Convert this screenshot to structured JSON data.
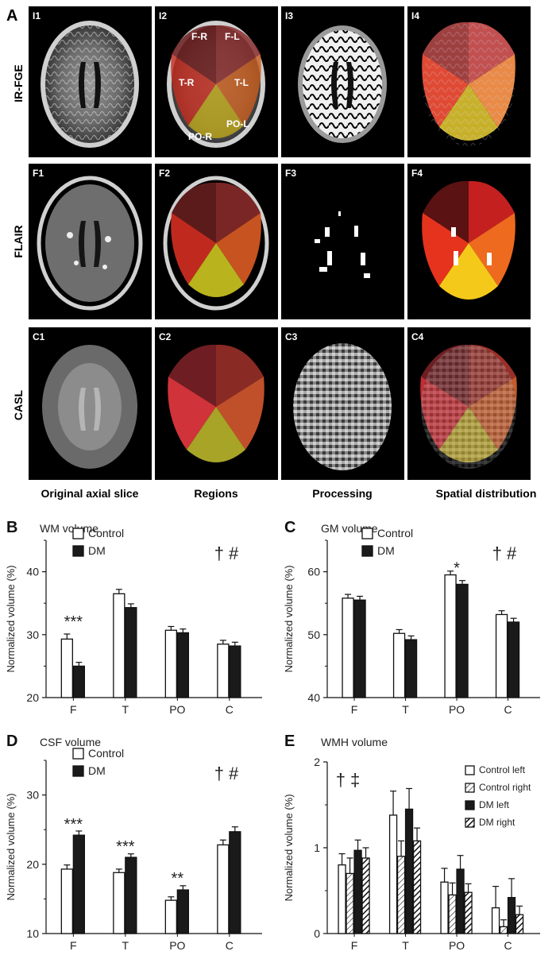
{
  "panel_a": {
    "letter": "A",
    "rows": [
      {
        "label": "IR-FGE",
        "tiles": [
          "I1",
          "I2",
          "I3",
          "I4"
        ]
      },
      {
        "label": "FLAIR",
        "tiles": [
          "F1",
          "F2",
          "F3",
          "F4"
        ]
      },
      {
        "label": "CASL",
        "tiles": [
          "C1",
          "C2",
          "C3",
          "C4"
        ]
      }
    ],
    "region_labels": [
      "F-R",
      "F-L",
      "T-R",
      "T-L",
      "PO-R",
      "PO-L"
    ],
    "column_titles": [
      "Original axial slice",
      "Regions",
      "Processing",
      "Spatial distribution"
    ]
  },
  "chart_data": [
    {
      "panel": "B",
      "type": "bar",
      "title": "WM volume",
      "ylabel": "Normalized volume (%)",
      "xlabel": "",
      "categories": [
        "F",
        "T",
        "PO",
        "C"
      ],
      "ylim": [
        20,
        45
      ],
      "yticks": [
        "20",
        "30",
        "40"
      ],
      "ytick_values": [
        20,
        30,
        40
      ],
      "series": [
        {
          "name": "Control",
          "values": [
            29.3,
            36.5,
            30.7,
            28.5
          ],
          "errors": [
            0.8,
            0.7,
            0.6,
            0.6
          ]
        },
        {
          "name": "DM",
          "values": [
            25.0,
            34.3,
            30.3,
            28.2
          ],
          "errors": [
            0.6,
            0.6,
            0.6,
            0.6
          ]
        }
      ],
      "annotations": [
        {
          "text": "***",
          "category": 0,
          "y": 31.0
        }
      ],
      "corner_note": "† #"
    },
    {
      "panel": "C",
      "type": "bar",
      "title": "GM volume",
      "ylabel": "Normalized volume (%)",
      "xlabel": "",
      "categories": [
        "F",
        "T",
        "PO",
        "C"
      ],
      "ylim": [
        40,
        65
      ],
      "yticks": [
        "40",
        "50",
        "60"
      ],
      "ytick_values": [
        40,
        50,
        60
      ],
      "series": [
        {
          "name": "Control",
          "values": [
            55.8,
            50.2,
            59.5,
            53.2
          ],
          "errors": [
            0.6,
            0.6,
            0.6,
            0.6
          ]
        },
        {
          "name": "DM",
          "values": [
            55.5,
            49.2,
            58.0,
            52.0
          ],
          "errors": [
            0.6,
            0.6,
            0.6,
            0.6
          ]
        }
      ],
      "annotations": [
        {
          "text": "*",
          "category": 2,
          "y": 59.5
        }
      ],
      "corner_note": "† #"
    },
    {
      "panel": "D",
      "type": "bar",
      "title": "CSF volume",
      "ylabel": "Normalized volume (%)",
      "xlabel": "",
      "categories": [
        "F",
        "T",
        "PO",
        "C"
      ],
      "ylim": [
        10,
        35
      ],
      "yticks": [
        "10",
        "20",
        "30"
      ],
      "ytick_values": [
        10,
        20,
        30
      ],
      "series": [
        {
          "name": "Control",
          "values": [
            19.3,
            18.8,
            14.8,
            22.8
          ],
          "errors": [
            0.6,
            0.5,
            0.5,
            0.7
          ]
        },
        {
          "name": "DM",
          "values": [
            24.2,
            21.0,
            16.3,
            24.7
          ],
          "errors": [
            0.6,
            0.5,
            0.6,
            0.7
          ]
        }
      ],
      "annotations": [
        {
          "text": "***",
          "category": 0,
          "y": 24.8
        },
        {
          "text": "***",
          "category": 1,
          "y": 21.6
        },
        {
          "text": "**",
          "category": 2,
          "y": 17.0
        }
      ],
      "corner_note": "† #"
    },
    {
      "panel": "E",
      "type": "bar",
      "title": "WMH volume",
      "ylabel": "Normalized volume (%)",
      "xlabel": "",
      "categories": [
        "F",
        "T",
        "PO",
        "C"
      ],
      "ylim": [
        0,
        2
      ],
      "yticks": [
        "0",
        "1",
        "2"
      ],
      "ytick_values": [
        0,
        1,
        2
      ],
      "series": [
        {
          "name": "Control left",
          "values": [
            0.8,
            1.38,
            0.6,
            0.3
          ],
          "errors": [
            0.13,
            0.28,
            0.16,
            0.25
          ]
        },
        {
          "name": "Control right",
          "values": [
            0.7,
            0.9,
            0.45,
            0.08
          ],
          "errors": [
            0.18,
            0.18,
            0.14,
            0.08
          ]
        },
        {
          "name": "DM left",
          "values": [
            0.97,
            1.45,
            0.75,
            0.42
          ],
          "errors": [
            0.12,
            0.24,
            0.16,
            0.22
          ]
        },
        {
          "name": "DM right",
          "values": [
            0.88,
            1.08,
            0.48,
            0.22
          ],
          "errors": [
            0.12,
            0.15,
            0.1,
            0.1
          ]
        }
      ],
      "annotations": [],
      "corner_note": "† ‡"
    }
  ],
  "colors": {
    "bar_outline": "#111111",
    "bar_fill_dark": "#1a1a1a",
    "bar_fill_light": "#ffffff",
    "tile_background": "#000000",
    "label_text": "#ffffff"
  }
}
